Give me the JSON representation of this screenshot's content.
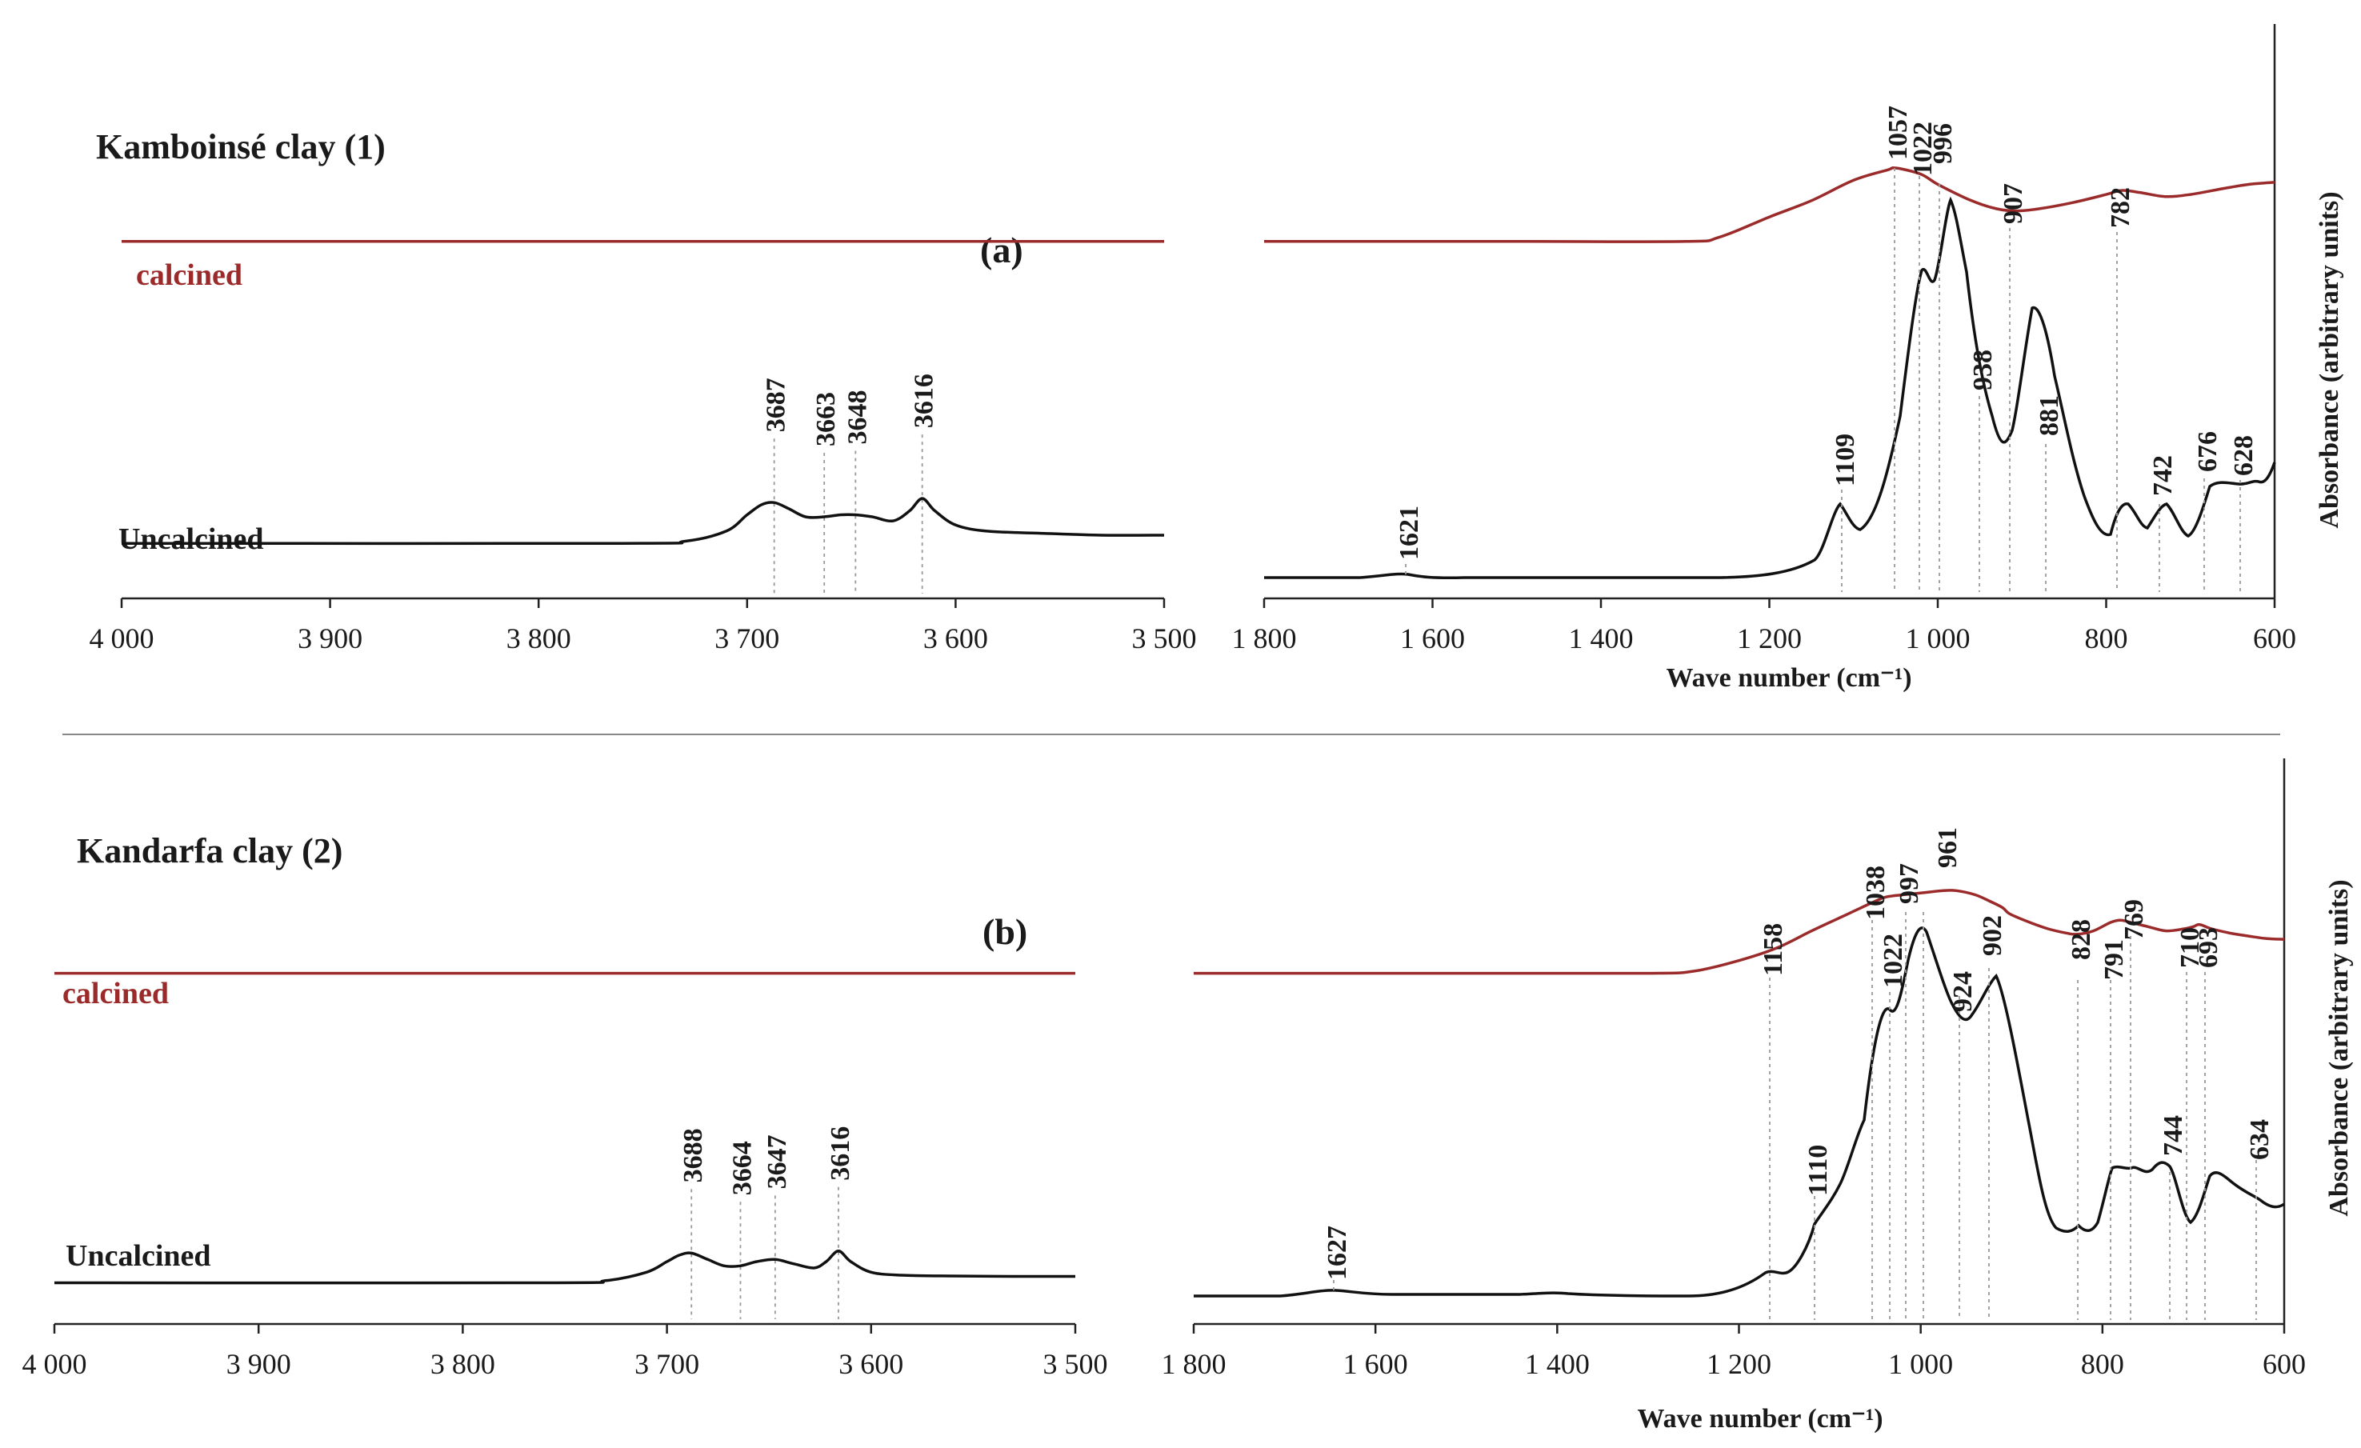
{
  "colors": {
    "calcined": "#9b2b2b",
    "uncalcined": "#111111"
  },
  "chart_data": [
    {
      "id": "a",
      "type": "line",
      "title": "Kamboinsé clay (1)",
      "panel_label": "(a)",
      "calcined_label": "calcined",
      "uncalcined_label": "Uncalcined",
      "xlabel": "Wave number (cm⁻¹)",
      "ylabel": "Absorbance (arbitrary units)",
      "ranges": [
        {
          "xlim": [
            4000,
            3500
          ],
          "ticks": [
            "4 000",
            "3 900",
            "3 800",
            "3 700",
            "3 600",
            "3 500"
          ],
          "tick_values": [
            4000,
            3900,
            3800,
            3700,
            3600,
            3500
          ],
          "series": [
            {
              "name": "calcined",
              "x": [
                4000,
                3500
              ],
              "y": [
                0.82,
                0.82
              ]
            },
            {
              "name": "Uncalcined",
              "x": [
                4000,
                3760,
                3730,
                3710,
                3700,
                3693,
                3687,
                3680,
                3672,
                3663,
                3655,
                3648,
                3640,
                3630,
                3622,
                3616,
                3610,
                3600,
                3585,
                3560,
                3530,
                3500
              ],
              "y": [
                0.08,
                0.08,
                0.085,
                0.11,
                0.15,
                0.175,
                0.18,
                0.165,
                0.145,
                0.145,
                0.15,
                0.15,
                0.145,
                0.135,
                0.16,
                0.19,
                0.16,
                0.125,
                0.11,
                0.105,
                0.1,
                0.1
              ]
            }
          ],
          "peaks": [
            {
              "x": 3687,
              "label": "3687"
            },
            {
              "x": 3663,
              "label": "3663"
            },
            {
              "x": 3648,
              "label": "3648"
            },
            {
              "x": 3616,
              "label": "3616"
            }
          ]
        },
        {
          "xlim": [
            1800,
            600
          ],
          "ticks": [
            "1 800",
            "1 600",
            "1 400",
            "1 200",
            "1 000",
            "800",
            "600"
          ],
          "tick_values": [
            1800,
            1600,
            1400,
            1200,
            1000,
            800,
            600
          ],
          "series": [
            {
              "name": "calcined",
              "x": [
                1800,
                1500,
                1300,
                1260,
                1200,
                1150,
                1100,
                1060,
                1050,
                1020,
                1000,
                960,
                930,
                907,
                880,
                840,
                800,
                782,
                760,
                730,
                700,
                660,
                630,
                600
              ],
              "y": [
                0.82,
                0.82,
                0.82,
                0.83,
                0.88,
                0.92,
                0.97,
                0.995,
                1.0,
                0.985,
                0.96,
                0.92,
                0.9,
                0.895,
                0.9,
                0.915,
                0.935,
                0.945,
                0.94,
                0.93,
                0.935,
                0.95,
                0.96,
                0.965
              ]
            }
          ]
        }
      ]
    },
    {
      "id": "b",
      "type": "line",
      "title": "Kandarfa clay (2)",
      "panel_label": "(b)",
      "calcined_label": "calcined",
      "uncalcined_label": "Uncalcined",
      "xlabel": "Wave number (cm⁻¹)",
      "ylabel": "Absorbance (arbitrary units)",
      "ranges": [
        {
          "xlim": [
            4000,
            3500
          ],
          "ticks": [
            "4 000",
            "3 900",
            "3 800",
            "3 700",
            "3 600",
            "3 500"
          ],
          "tick_values": [
            4000,
            3900,
            3800,
            3700,
            3600,
            3500
          ],
          "series": [
            {
              "name": "calcined",
              "x": [
                4000,
                3500
              ],
              "y": [
                0.78,
                0.78
              ]
            },
            {
              "name": "Uncalcined",
              "x": [
                4000,
                3760,
                3730,
                3710,
                3700,
                3694,
                3688,
                3680,
                3672,
                3664,
                3656,
                3647,
                3638,
                3628,
                3622,
                3616,
                3610,
                3600,
                3585,
                3560,
                3530,
                3500
              ],
              "y": [
                0.05,
                0.05,
                0.055,
                0.075,
                0.1,
                0.115,
                0.12,
                0.105,
                0.09,
                0.09,
                0.1,
                0.105,
                0.095,
                0.085,
                0.1,
                0.125,
                0.1,
                0.075,
                0.068,
                0.066,
                0.065,
                0.065
              ]
            }
          ],
          "peaks": [
            {
              "x": 3688,
              "label": "3688"
            },
            {
              "x": 3664,
              "label": "3664"
            },
            {
              "x": 3647,
              "label": "3647"
            },
            {
              "x": 3616,
              "label": "3616"
            }
          ]
        },
        {
          "xlim": [
            1800,
            600
          ],
          "ticks": [
            "1 800",
            "1 600",
            "1 400",
            "1 200",
            "1 000",
            "800",
            "600"
          ],
          "tick_values": [
            1800,
            1600,
            1400,
            1200,
            1000,
            800,
            600
          ],
          "series": [
            {
              "name": "calcined",
              "x": [
                1800,
                1500,
                1300,
                1250,
                1200,
                1158,
                1120,
                1080,
                1050,
                1038,
                1020,
                997,
                975,
                961,
                940,
                924,
                910,
                902,
                880,
                860,
                840,
                828,
                810,
                791,
                780,
                769,
                750,
                730,
                710,
                700,
                693,
                680,
                660,
                640,
                620,
                600
              ],
              "y": [
                0.78,
                0.78,
                0.78,
                0.785,
                0.81,
                0.84,
                0.88,
                0.92,
                0.95,
                0.96,
                0.965,
                0.97,
                0.975,
                0.975,
                0.965,
                0.95,
                0.935,
                0.92,
                0.9,
                0.885,
                0.875,
                0.872,
                0.88,
                0.9,
                0.905,
                0.9,
                0.89,
                0.88,
                0.885,
                0.89,
                0.895,
                0.885,
                0.875,
                0.868,
                0.862,
                0.86
              ]
            }
          ]
        }
      ]
    }
  ]
}
